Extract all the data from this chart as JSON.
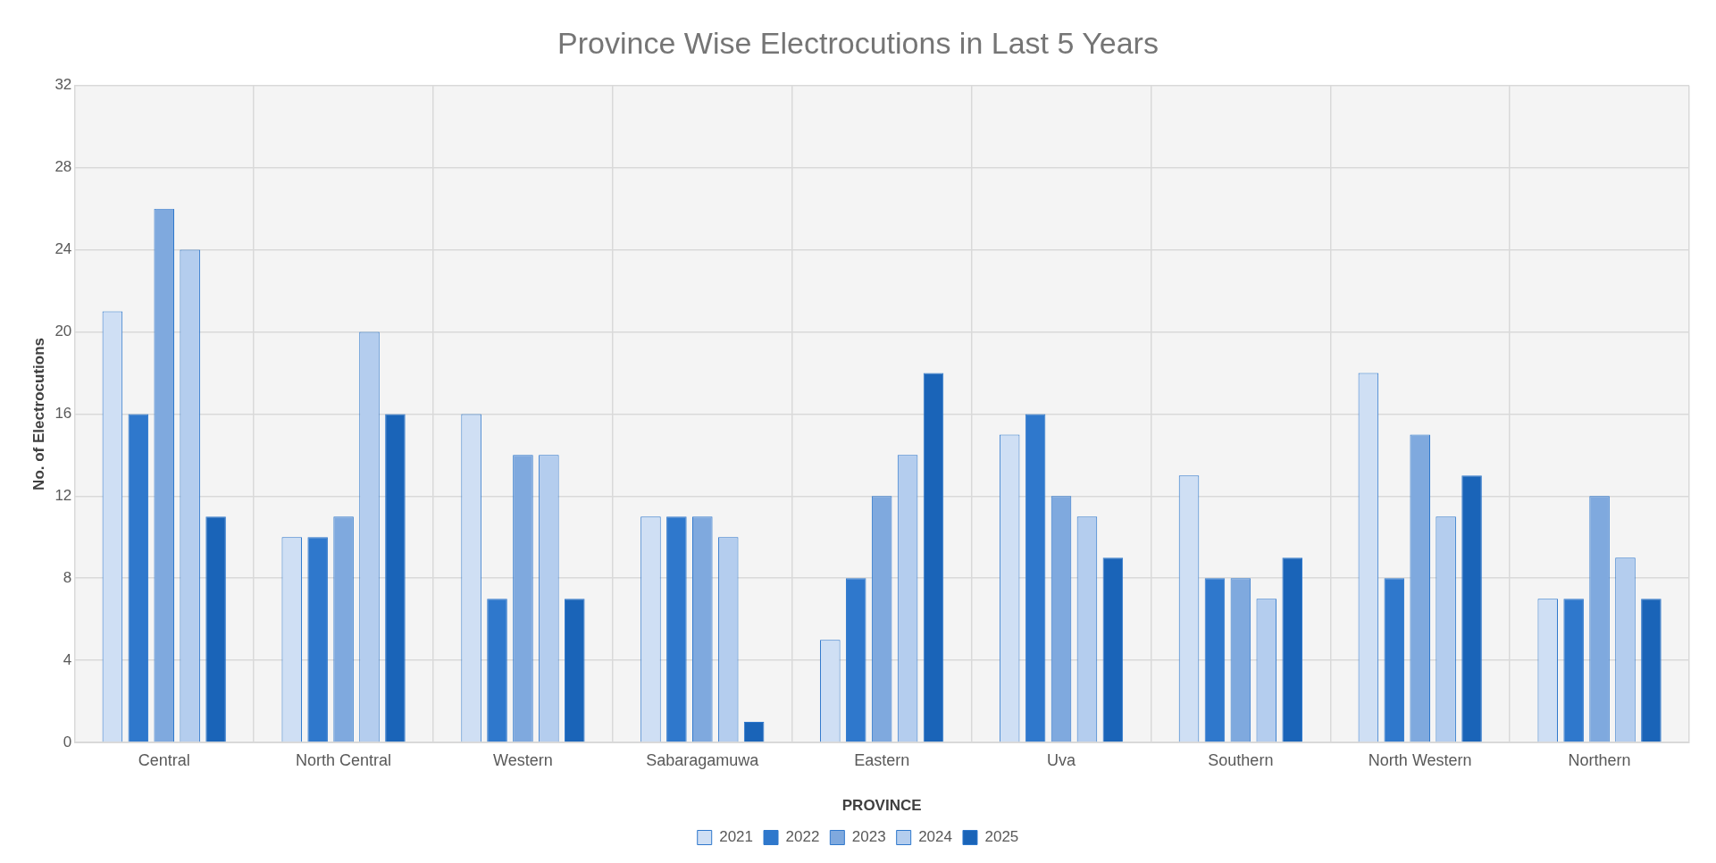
{
  "chart_data": {
    "type": "bar",
    "title": "Province Wise Electrocutions in Last 5 Years",
    "xlabel": "PROVINCE",
    "ylabel": "No. of Electrocutions",
    "categories": [
      "Central",
      "North Central",
      "Western",
      "Sabaragamuwa",
      "Eastern",
      "Uva",
      "Southern",
      "North Western",
      "Northern"
    ],
    "series": [
      {
        "name": "2021",
        "color": "#cfdff4",
        "values": [
          21,
          10,
          16,
          11,
          5,
          15,
          13,
          18,
          7
        ]
      },
      {
        "name": "2022",
        "color": "#2f78cc",
        "values": [
          16,
          10,
          7,
          11,
          8,
          16,
          8,
          8,
          7
        ]
      },
      {
        "name": "2023",
        "color": "#7fa9de",
        "values": [
          26,
          11,
          14,
          11,
          12,
          12,
          8,
          15,
          12
        ]
      },
      {
        "name": "2024",
        "color": "#b4cdee",
        "values": [
          24,
          20,
          14,
          10,
          14,
          11,
          7,
          11,
          9
        ]
      },
      {
        "name": "2025",
        "color": "#1a64b8",
        "values": [
          11,
          16,
          7,
          1,
          18,
          9,
          9,
          13,
          7
        ]
      }
    ],
    "ylim": [
      0,
      32
    ],
    "yticks": [
      0,
      4,
      8,
      12,
      16,
      20,
      24,
      28,
      32
    ],
    "grid": true,
    "legend": "bottom"
  }
}
